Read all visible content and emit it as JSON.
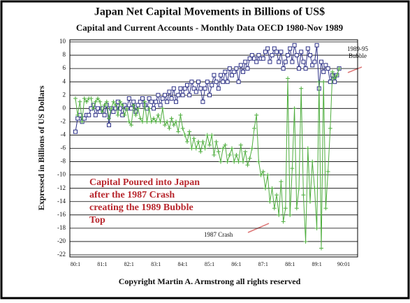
{
  "chart_data": {
    "type": "line",
    "title": "Japan Net Capital Movements in Billions of US$",
    "subtitle": "Capital and Current Accounts - Monthly Data OECD 1980-Nov 1989",
    "y_label": "Expressed in Billions of US Dollars",
    "footer": "Copyright Martin A. Armstrong all rights reserved",
    "annotations": {
      "bubble": [
        "1989-95",
        "Bubble"
      ],
      "crash": "1987 Crash",
      "note": [
        "Capital Poured into Japan",
        "after the 1987 Crash",
        "creating the 1989 Bubble",
        "Top"
      ]
    },
    "categories": [
      "80:1",
      null,
      null,
      null,
      null,
      null,
      null,
      null,
      null,
      null,
      null,
      null,
      "81:1",
      null,
      null,
      null,
      null,
      null,
      null,
      null,
      null,
      null,
      null,
      null,
      "82:1",
      null,
      null,
      null,
      null,
      null,
      null,
      null,
      null,
      null,
      null,
      null,
      "83:1",
      null,
      null,
      null,
      null,
      null,
      null,
      null,
      null,
      null,
      null,
      null,
      "84:1",
      null,
      null,
      null,
      null,
      null,
      null,
      null,
      null,
      null,
      null,
      null,
      "85:1",
      null,
      null,
      null,
      null,
      null,
      null,
      null,
      null,
      null,
      null,
      null,
      "86:1",
      null,
      null,
      null,
      null,
      null,
      null,
      null,
      null,
      null,
      null,
      null,
      "87:1",
      null,
      null,
      null,
      null,
      null,
      null,
      null,
      null,
      null,
      null,
      null,
      "88:1",
      null,
      null,
      null,
      null,
      null,
      null,
      null,
      null,
      null,
      null,
      null,
      "89:1",
      null,
      null,
      null,
      null,
      null,
      null,
      null,
      null,
      null,
      null,
      null,
      "90:01"
    ],
    "series": [
      {
        "color": "#2b2f86",
        "marker": "square",
        "values": [
          -3.5,
          -1.5,
          -1,
          -2,
          -1.5,
          -1,
          -1,
          0,
          0.5,
          -1,
          0,
          -0.5,
          0,
          -1,
          0.5,
          -2.5,
          0,
          -0.5,
          0,
          1,
          0,
          -1,
          0.5,
          0,
          1.5,
          0,
          1,
          -0.5,
          0.5,
          1,
          1.5,
          0.5,
          0,
          1.5,
          1,
          0,
          1,
          2,
          0.5,
          1.5,
          2,
          1,
          2.5,
          1.5,
          3,
          1,
          2,
          3,
          2,
          3,
          3.5,
          2,
          4,
          3,
          2.5,
          4,
          3,
          1,
          3,
          4,
          2,
          3.5,
          5,
          4,
          3,
          5,
          4,
          5.5,
          4,
          6,
          5,
          5.5,
          6,
          4,
          6.5,
          5.5,
          7,
          6,
          7.5,
          8,
          7.5,
          7,
          8,
          7.5,
          7.5,
          8.5,
          9,
          7,
          8,
          9,
          8.5,
          7,
          8.5,
          6,
          7,
          8,
          9,
          7,
          9.5,
          8,
          6,
          8.5,
          7,
          6,
          9,
          8,
          6.5,
          7,
          9.5,
          3,
          7,
          5.5,
          6.5,
          6,
          4,
          5,
          4,
          5,
          6,
          null,
          null
        ]
      },
      {
        "color": "#4fae3f",
        "marker": "plus",
        "values": [
          1.5,
          -1,
          1,
          -2,
          1.5,
          1,
          1.5,
          1.5,
          0,
          1,
          1.5,
          1,
          -0.5,
          0.5,
          1,
          -1.5,
          0,
          1,
          0.5,
          -1,
          1,
          0.5,
          -1,
          0,
          -2,
          -2.5,
          0.5,
          -1,
          0,
          -1.5,
          -2,
          1,
          -2,
          0,
          -2,
          -1.5,
          -2,
          -1,
          -2,
          0,
          -2.5,
          -2,
          -3,
          -1.5,
          -2.5,
          -2,
          -3.5,
          -1,
          -3,
          -4,
          -5,
          -3.5,
          -6,
          -4.5,
          -6,
          -5,
          -6.5,
          -5,
          -6,
          -4,
          -5.5,
          -4,
          -7,
          -5,
          -6.5,
          -8,
          -6,
          -5.5,
          -8,
          -7,
          -6,
          -8,
          -7,
          -8,
          -5.5,
          -8,
          -6.5,
          -8.5,
          -7.5,
          -6,
          -3,
          -1,
          -8,
          -10,
          -9.5,
          -12,
          -10,
          -14,
          -12,
          -15,
          -13,
          -16,
          -11,
          -17,
          -15,
          4.5,
          -16,
          -9,
          0,
          -15,
          -12,
          3,
          -13,
          -20,
          -6,
          -14,
          -8,
          -12,
          -18,
          4,
          -21,
          4,
          -15,
          -9.5,
          -3,
          5.5,
          4.5,
          5,
          6,
          null,
          null
        ]
      }
    ],
    "ylim": [
      -22,
      10
    ],
    "yticks": [
      10,
      8,
      6,
      4,
      2,
      0,
      -2,
      -4,
      -6,
      -8,
      -10,
      -12,
      -14,
      -16,
      -18,
      -20,
      -22
    ],
    "grid": true
  }
}
